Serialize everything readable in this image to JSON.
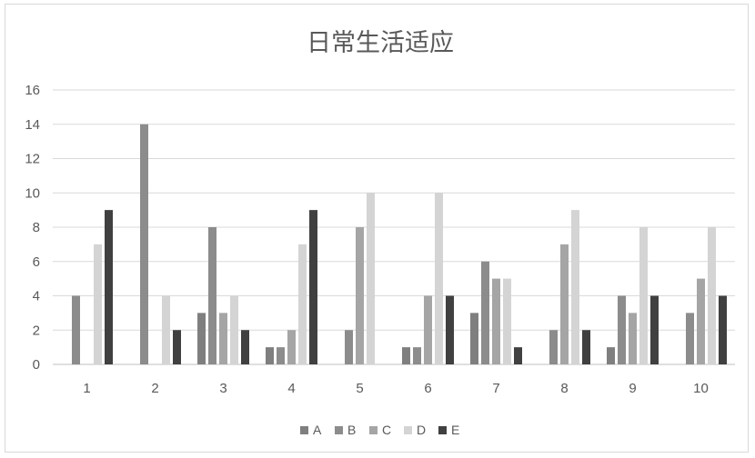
{
  "chart_data": {
    "type": "bar",
    "title": "日常生活适应",
    "xlabel": "",
    "ylabel": "",
    "ylim": [
      0,
      16
    ],
    "yticks": [
      0,
      2,
      4,
      6,
      8,
      10,
      12,
      14,
      16
    ],
    "grid": true,
    "legend_position": "bottom",
    "categories": [
      "1",
      "2",
      "3",
      "4",
      "5",
      "6",
      "7",
      "8",
      "9",
      "10"
    ],
    "series": [
      {
        "name": "A",
        "color": "#7f7f7f",
        "values": [
          0,
          0,
          3,
          1,
          0,
          1,
          3,
          0,
          1,
          0
        ]
      },
      {
        "name": "B",
        "color": "#8c8c8c",
        "values": [
          4,
          14,
          8,
          1,
          2,
          1,
          6,
          2,
          4,
          3
        ]
      },
      {
        "name": "C",
        "color": "#a5a5a5",
        "values": [
          0,
          0,
          3,
          2,
          8,
          4,
          5,
          7,
          3,
          5
        ]
      },
      {
        "name": "D",
        "color": "#d4d4d4",
        "values": [
          7,
          4,
          4,
          7,
          10,
          10,
          5,
          9,
          8,
          8
        ]
      },
      {
        "name": "E",
        "color": "#404040",
        "values": [
          9,
          2,
          2,
          9,
          0,
          4,
          1,
          2,
          4,
          4
        ]
      }
    ]
  }
}
